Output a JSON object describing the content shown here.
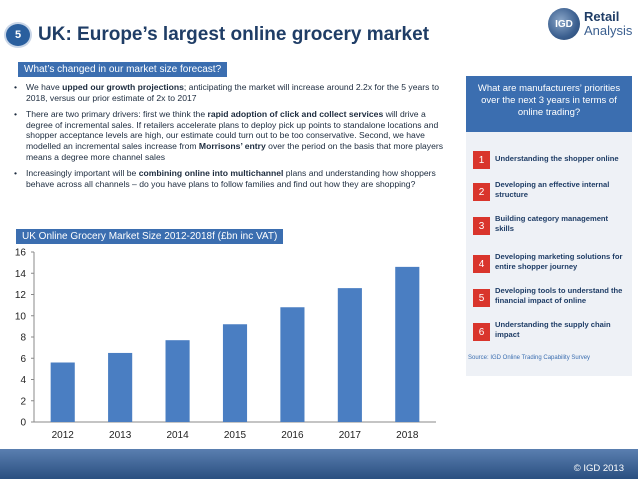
{
  "slide": {
    "number": "5",
    "title": "UK: Europe’s largest online grocery market"
  },
  "logo": {
    "mark": "IGD",
    "line1": "Retail",
    "line2": "Analysis"
  },
  "market_label": "What’s changed in our market size forecast?",
  "bullets": [
    {
      "pre": "We have ",
      "bold": "upped our growth projections",
      "post": "; anticipating the market will increase around 2.2x for the 5 years to 2018, versus our prior estimate of 2x to 2017"
    },
    {
      "pre": "There are two primary drivers: first we think the ",
      "bold": "rapid adoption of click and collect services",
      "mid": " will drive a degree of incremental sales. If retailers accelerate plans to deploy pick up points to standalone locations and shopper acceptance levels are high, our estimate could turn out to be too conservative. Second, we have modelled an incremental sales increase from ",
      "bold2": "Morrisons’ entry",
      "post": " over the period on the basis that more players means a degree more channel sales"
    },
    {
      "pre": "Increasingly important will be ",
      "bold": "combining online into multichannel",
      "post": " plans and understanding how shoppers behave across all channels – do you have plans to follow families and find out how they are shopping?"
    }
  ],
  "chart_label": "UK Online Grocery Market Size 2012-2018f (£bn inc VAT)",
  "chart_data": {
    "type": "bar",
    "categories": [
      "2012",
      "2013",
      "2014",
      "2015",
      "2016",
      "2017",
      "2018"
    ],
    "values": [
      5.6,
      6.5,
      7.7,
      9.2,
      10.8,
      12.6,
      14.6
    ],
    "ylim": [
      0,
      16
    ],
    "yticks": [
      0,
      2,
      4,
      6,
      8,
      10,
      12,
      14,
      16
    ],
    "bar_color": "#4a7ec2",
    "grid": false,
    "legend": "none"
  },
  "panel": {
    "header": "What are manufacturers’ priorities over the next 3 years in terms of online trading?",
    "items": [
      {
        "num": "1",
        "text": "Understanding the shopper online"
      },
      {
        "num": "2",
        "text": "Developing an effective internal structure"
      },
      {
        "num": "3",
        "text": "Building category management skills"
      },
      {
        "num": "4",
        "text": "Developing marketing solutions for entire shopper journey"
      },
      {
        "num": "5",
        "text": "Developing tools to understand the financial impact of online"
      },
      {
        "num": "6",
        "text": "Understanding the supply chain impact"
      }
    ],
    "source": "Source: IGD Online Trading Capability Survey"
  },
  "footer": {
    "copyright": "© IGD 2013"
  }
}
